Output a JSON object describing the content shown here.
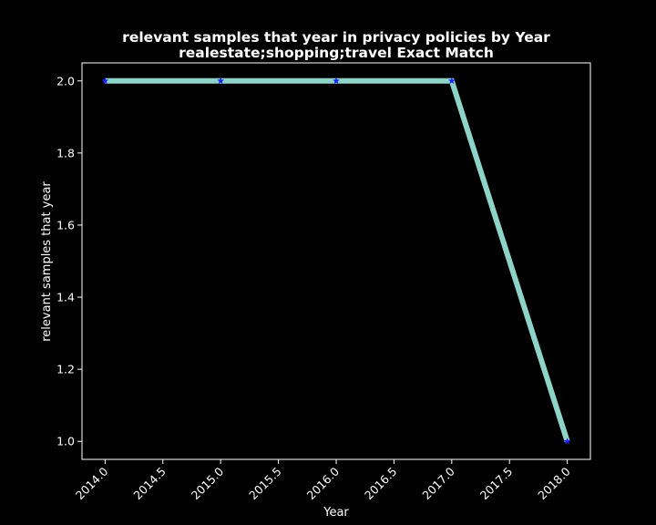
{
  "chart_data": {
    "type": "line",
    "title": "relevant samples that year in privacy policies by Year",
    "subtitle": "realestate;shopping;travel Exact Match",
    "xlabel": "Year",
    "ylabel": "relevant samples that year",
    "x": [
      2014,
      2015,
      2016,
      2017,
      2018
    ],
    "series": [
      {
        "values": [
          2.0,
          2.0,
          2.0,
          2.0,
          1.0
        ]
      }
    ],
    "xlim": [
      2013.8,
      2018.2
    ],
    "ylim": [
      0.95,
      2.05
    ],
    "x_ticks": [
      2014.0,
      2014.5,
      2015.0,
      2015.5,
      2016.0,
      2016.5,
      2017.0,
      2017.5,
      2018.0
    ],
    "x_tick_labels": [
      "2014.0",
      "2014.5",
      "2015.0",
      "2015.5",
      "2016.0",
      "2016.5",
      "2017.0",
      "2017.5",
      "2018.0"
    ],
    "y_ticks": [
      1.0,
      1.2,
      1.4,
      1.6,
      1.8,
      2.0
    ],
    "y_tick_labels": [
      "1.0",
      "1.2",
      "1.4",
      "1.6",
      "1.8",
      "2.0"
    ],
    "grid": false,
    "legend": "none",
    "colors": {
      "background": "#000000",
      "axes": "#ffffff",
      "line": "#8dd3c7",
      "marker": "#1f1fff",
      "text": "#ffffff"
    },
    "marker": "star"
  }
}
